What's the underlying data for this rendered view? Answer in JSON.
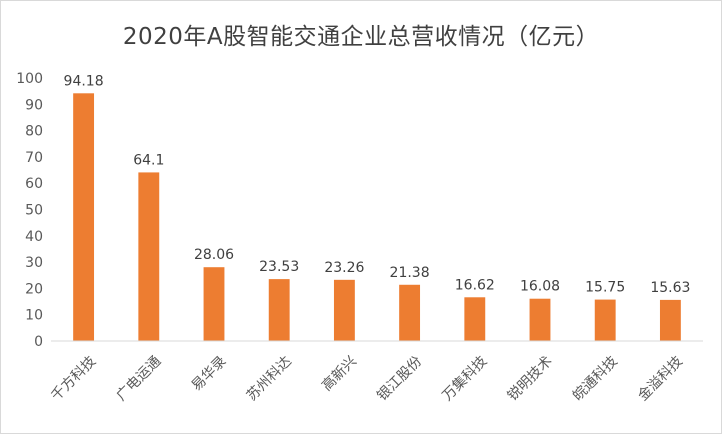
{
  "chart_data": {
    "type": "bar",
    "title": "2020年A股智能交通企业总营收情况（亿元）",
    "categories": [
      "千方科技",
      "广电运通",
      "易华录",
      "苏州科达",
      "高新兴",
      "银江股份",
      "万集科技",
      "锐明技术",
      "皖通科技",
      "金溢科技"
    ],
    "series": [
      {
        "values": [
          94.18,
          64.1,
          28.06,
          23.53,
          23.26,
          21.38,
          16.62,
          16.08,
          15.75,
          15.63
        ]
      }
    ],
    "data_labels": [
      "94.18",
      "64.1",
      "28.06",
      "23.53",
      "23.26",
      "21.38",
      "16.62",
      "16.08",
      "15.75",
      "15.63"
    ],
    "y_ticks": [
      "0",
      "10",
      "20",
      "30",
      "40",
      "50",
      "60",
      "70",
      "80",
      "90",
      "100"
    ],
    "ylim": [
      0,
      100
    ],
    "grid": false,
    "legend": "none",
    "bar_color": "#ed7d31",
    "axis_color": "#d9d9d9",
    "xlabel": "",
    "ylabel": ""
  }
}
